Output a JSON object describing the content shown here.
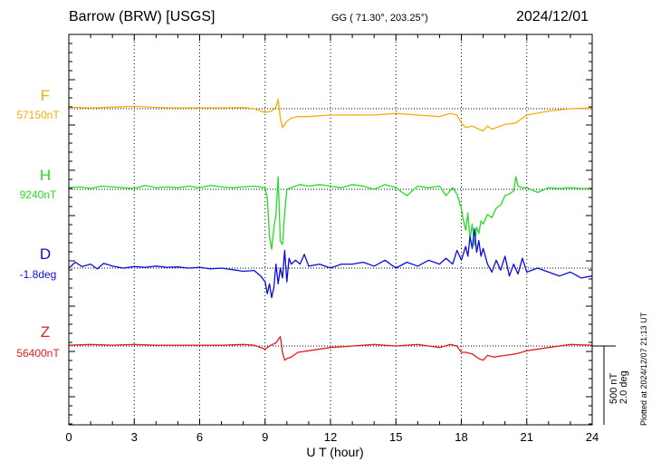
{
  "header": {
    "station": "Barrow (BRW)  [USGS]",
    "coords": "GG ( 71.30°, 203.25°)",
    "date": "2024/12/01"
  },
  "plotted_note": "Plotted at 2024/12/07 21:13 UT",
  "scale": {
    "nt": "500 nT",
    "deg": "2.0 deg"
  },
  "chart_data": {
    "type": "line",
    "xlabel": "U T (hour)",
    "xlim": [
      0,
      24
    ],
    "x_ticks": [
      "0",
      "3",
      "6",
      "9",
      "12",
      "15",
      "18",
      "21",
      "24"
    ],
    "grid": true,
    "series": [
      {
        "name": "F",
        "baseline_label": "57150nT",
        "color": "#f5ad0a",
        "unit": "nT",
        "x": [
          0,
          1,
          2,
          3,
          4,
          5,
          6,
          7,
          8,
          8.5,
          9,
          9.3,
          9.5,
          9.6,
          9.7,
          9.8,
          9.9,
          10,
          10.2,
          10.5,
          11,
          12,
          13,
          14,
          15,
          16,
          17,
          17.5,
          17.8,
          18,
          18.2,
          18.5,
          18.8,
          19,
          19.2,
          19.4,
          19.6,
          20,
          20.5,
          21,
          22,
          23,
          24
        ],
        "values": [
          10,
          5,
          10,
          15,
          8,
          5,
          6,
          5,
          8,
          0,
          -25,
          -15,
          10,
          60,
          -60,
          -120,
          -100,
          -80,
          -60,
          -50,
          -50,
          -40,
          -40,
          -40,
          -30,
          -40,
          -50,
          -30,
          -40,
          -90,
          -120,
          -110,
          -130,
          -140,
          -110,
          -130,
          -120,
          -100,
          -90,
          -40,
          -15,
          0,
          5
        ]
      },
      {
        "name": "H",
        "baseline_label": "9240nT",
        "color": "#22dd22",
        "unit": "nT",
        "x": [
          0,
          0.5,
          1,
          1.5,
          2,
          2.5,
          3,
          3.5,
          4,
          4.5,
          5,
          5.5,
          6,
          6.5,
          7,
          7.5,
          8,
          8.5,
          9,
          9.1,
          9.2,
          9.3,
          9.4,
          9.5,
          9.6,
          9.7,
          9.8,
          9.9,
          10,
          10.2,
          10.4,
          10.6,
          11,
          11.5,
          12,
          12.5,
          13,
          13.5,
          14,
          14.5,
          15,
          15.5,
          16,
          16.5,
          17,
          17.3,
          17.6,
          17.8,
          18,
          18.1,
          18.2,
          18.3,
          18.4,
          18.5,
          18.6,
          18.7,
          18.8,
          18.9,
          19,
          19.2,
          19.4,
          19.6,
          19.8,
          20,
          20.2,
          20.4,
          20.5,
          20.6,
          20.8,
          21,
          21.5,
          22,
          22.5,
          23,
          23.5,
          24
        ],
        "values": [
          10,
          15,
          5,
          20,
          15,
          10,
          5,
          25,
          10,
          15,
          10,
          20,
          10,
          25,
          15,
          10,
          15,
          20,
          10,
          -60,
          -300,
          -380,
          -250,
          -160,
          80,
          -330,
          -350,
          -150,
          0,
          10,
          20,
          30,
          20,
          30,
          20,
          10,
          30,
          20,
          0,
          30,
          10,
          -40,
          20,
          10,
          20,
          -40,
          10,
          -30,
          -120,
          -200,
          -260,
          -150,
          -320,
          -220,
          -360,
          -240,
          -280,
          -200,
          -220,
          -160,
          -180,
          -120,
          -100,
          -40,
          -30,
          -10,
          80,
          20,
          10,
          10,
          -20,
          10,
          5,
          10,
          5,
          5
        ]
      },
      {
        "name": "D",
        "baseline_label": "-1.8deg",
        "color": "#0c0cdc",
        "unit": "deg",
        "x": [
          0,
          0.3,
          0.6,
          1,
          1.3,
          1.6,
          2,
          2.5,
          3,
          3.5,
          4,
          4.5,
          5,
          5.5,
          6,
          6.5,
          7,
          7.5,
          8,
          8.5,
          8.8,
          9,
          9.1,
          9.2,
          9.3,
          9.4,
          9.5,
          9.6,
          9.7,
          9.8,
          9.9,
          10,
          10.1,
          10.2,
          10.4,
          10.6,
          10.8,
          11,
          11.5,
          12,
          12.5,
          13,
          13.5,
          14,
          14.5,
          15,
          15.5,
          16,
          16.5,
          17,
          17.3,
          17.6,
          17.8,
          18,
          18.2,
          18.3,
          18.4,
          18.5,
          18.6,
          18.7,
          18.8,
          18.9,
          19,
          19.2,
          19.4,
          19.6,
          19.8,
          20,
          20.2,
          20.4,
          20.6,
          20.8,
          21,
          21.5,
          22,
          22.5,
          23,
          23.5,
          24
        ],
        "values": [
          0,
          0.15,
          0.04,
          0.1,
          -0.02,
          0.12,
          0.05,
          0.0,
          0.04,
          0.02,
          0.05,
          0.02,
          0.03,
          0.0,
          0.02,
          -0.02,
          0.0,
          -0.04,
          -0.08,
          -0.06,
          -0.2,
          -0.35,
          -0.65,
          -0.4,
          -0.75,
          -0.5,
          0.1,
          -0.4,
          0.0,
          -0.25,
          0.45,
          -0.35,
          0.25,
          0.1,
          0.2,
          0.1,
          0.35,
          0.05,
          0.1,
          0.0,
          0.1,
          0.1,
          0.15,
          0.05,
          0.2,
          0.0,
          0.15,
          0.05,
          0.2,
          0.1,
          0.25,
          0.1,
          0.45,
          0.2,
          0.55,
          0.3,
          0.8,
          0.5,
          1.0,
          0.4,
          0.7,
          0.3,
          0.5,
          0.1,
          -0.1,
          0.2,
          -0.05,
          0.3,
          -0.2,
          0.1,
          -0.15,
          0.25,
          -0.1,
          0.0,
          -0.1,
          -0.2,
          -0.1,
          -0.25,
          -0.2
        ]
      },
      {
        "name": "Z",
        "baseline_label": "56400nT",
        "color": "#e51c1c",
        "unit": "nT",
        "x": [
          0,
          1,
          2,
          3,
          4,
          5,
          6,
          7,
          8,
          8.5,
          9,
          9.2,
          9.5,
          9.7,
          9.8,
          9.9,
          10,
          10.2,
          10.5,
          11,
          12,
          13,
          14,
          15,
          16,
          17,
          17.5,
          17.8,
          18,
          18.2,
          18.5,
          18.8,
          19,
          19.2,
          19.5,
          20,
          20.5,
          21,
          22,
          23,
          24
        ],
        "values": [
          5,
          10,
          5,
          10,
          5,
          5,
          5,
          5,
          10,
          5,
          -20,
          0,
          20,
          60,
          -40,
          -90,
          -80,
          -70,
          -40,
          -30,
          -10,
          0,
          10,
          0,
          10,
          -10,
          10,
          0,
          -40,
          -40,
          -50,
          -80,
          -90,
          -60,
          -70,
          -60,
          -50,
          -30,
          -10,
          10,
          5
        ]
      }
    ]
  }
}
